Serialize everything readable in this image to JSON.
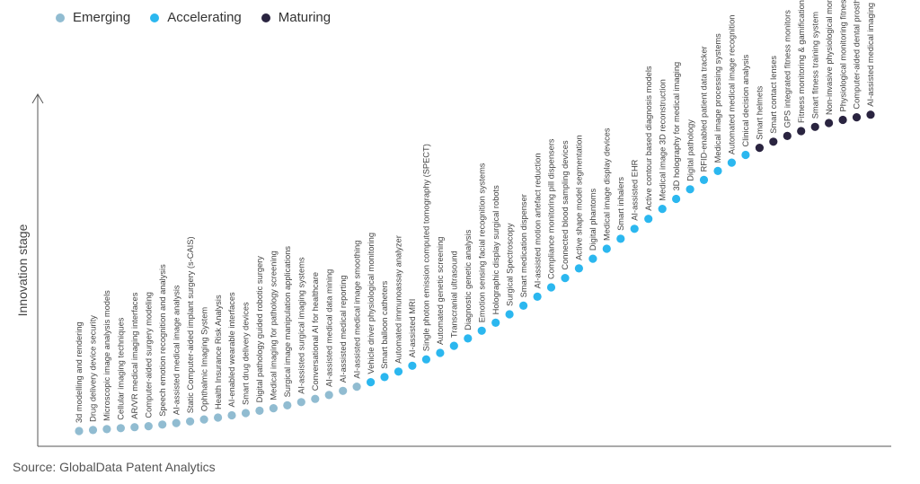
{
  "legend": [
    {
      "label": "Emerging",
      "color": "#91bcd1"
    },
    {
      "label": "Accelerating",
      "color": "#2bb7ef"
    },
    {
      "label": "Maturing",
      "color": "#2a2440"
    }
  ],
  "source": "Source: GlobalData Patent Analytics",
  "chart_data": {
    "type": "scatter",
    "title": "",
    "ylabel": "Innovation stage",
    "xlabel": "",
    "grid": false,
    "legend_position": "top-left",
    "y_range": [
      0,
      100
    ],
    "series": [
      {
        "name": "Emerging",
        "color": "#91bcd1"
      },
      {
        "name": "Accelerating",
        "color": "#2bb7ef"
      },
      {
        "name": "Maturing",
        "color": "#2a2440"
      }
    ],
    "points": [
      {
        "label": "3d modelling and rendering",
        "stage": "Emerging",
        "y": 0.0
      },
      {
        "label": "Drug delivery device security",
        "stage": "Emerging",
        "y": 0.3
      },
      {
        "label": "Microscopic image analysis models",
        "stage": "Emerging",
        "y": 0.6
      },
      {
        "label": "Cellular imaging techniques",
        "stage": "Emerging",
        "y": 0.9
      },
      {
        "label": "AR/VR medical imaging interfaces",
        "stage": "Emerging",
        "y": 1.2
      },
      {
        "label": "Computer-aided surgery modeling",
        "stage": "Emerging",
        "y": 1.5
      },
      {
        "label": "Speech emotion recognition and analysis",
        "stage": "Emerging",
        "y": 2.0
      },
      {
        "label": "AI-assisted medical image analysis",
        "stage": "Emerging",
        "y": 2.5
      },
      {
        "label": "Static Computer-aided implant surgery (s-CAIS)",
        "stage": "Emerging",
        "y": 3.0
      },
      {
        "label": "Ophthalmic Imaging System",
        "stage": "Emerging",
        "y": 3.6
      },
      {
        "label": "Health Insurance Risk Analysis",
        "stage": "Emerging",
        "y": 4.2
      },
      {
        "label": "AI-enabled wearable interfaces",
        "stage": "Emerging",
        "y": 4.9
      },
      {
        "label": "Smart drug delivery devices",
        "stage": "Emerging",
        "y": 5.6
      },
      {
        "label": "Digital pathology guided robotic surgery",
        "stage": "Emerging",
        "y": 6.3
      },
      {
        "label": "Medical imaging for pathology screening",
        "stage": "Emerging",
        "y": 7.1
      },
      {
        "label": "Surgical image manipulation applications",
        "stage": "Emerging",
        "y": 8.0
      },
      {
        "label": "AI-assisted surgical imaging systems",
        "stage": "Emerging",
        "y": 9.0
      },
      {
        "label": "Conversational AI for healthcare",
        "stage": "Emerging",
        "y": 10.0
      },
      {
        "label": "AI-assisted medical data mining",
        "stage": "Emerging",
        "y": 11.2
      },
      {
        "label": "AI-assisted medical reporting",
        "stage": "Emerging",
        "y": 12.5
      },
      {
        "label": "AI-assisted medical image smoothing",
        "stage": "Emerging",
        "y": 13.8
      },
      {
        "label": "Vehicle driver physiological monitoring",
        "stage": "Accelerating",
        "y": 15.2
      },
      {
        "label": "Smart balloon catheters",
        "stage": "Accelerating",
        "y": 16.8
      },
      {
        "label": "Automated immunoassay analyzer",
        "stage": "Accelerating",
        "y": 18.5
      },
      {
        "label": "AI-assisted MRI",
        "stage": "Accelerating",
        "y": 20.3
      },
      {
        "label": "Single photon emission computed tomography (SPECT)",
        "stage": "Accelerating",
        "y": 22.3
      },
      {
        "label": "Automated genetic screening",
        "stage": "Accelerating",
        "y": 24.3
      },
      {
        "label": "Transcranial ultrasound",
        "stage": "Accelerating",
        "y": 26.5
      },
      {
        "label": "Diagnostic genetic analysis",
        "stage": "Accelerating",
        "y": 28.8
      },
      {
        "label": "Emotion sensing facial recognition systems",
        "stage": "Accelerating",
        "y": 31.2
      },
      {
        "label": "Holographic display surgical robots",
        "stage": "Accelerating",
        "y": 33.7
      },
      {
        "label": "Surgical Spectroscopy",
        "stage": "Accelerating",
        "y": 36.3
      },
      {
        "label": "Smart medication dispenser",
        "stage": "Accelerating",
        "y": 39.0
      },
      {
        "label": "AI-assisted motion artefact reduction",
        "stage": "Accelerating",
        "y": 41.8
      },
      {
        "label": "Compliance monitoring pill dispensers",
        "stage": "Accelerating",
        "y": 44.7
      },
      {
        "label": "Connected blood sampling devices",
        "stage": "Accelerating",
        "y": 47.6
      },
      {
        "label": "Active shape model segmentation",
        "stage": "Accelerating",
        "y": 50.6
      },
      {
        "label": "Digital phantoms",
        "stage": "Accelerating",
        "y": 53.6
      },
      {
        "label": "Medical image display devices",
        "stage": "Accelerating",
        "y": 56.7
      },
      {
        "label": "Smart inhalers",
        "stage": "Accelerating",
        "y": 59.8
      },
      {
        "label": "AI-assisted EHR",
        "stage": "Accelerating",
        "y": 62.9
      },
      {
        "label": "Active contour based diagnosis models",
        "stage": "Accelerating",
        "y": 66.0
      },
      {
        "label": "Medical image 3D reconstruction",
        "stage": "Accelerating",
        "y": 69.1
      },
      {
        "label": "3D holography for medical imaging",
        "stage": "Accelerating",
        "y": 72.2
      },
      {
        "label": "Digital pathology",
        "stage": "Accelerating",
        "y": 75.2
      },
      {
        "label": "RFID-enabled patient data tracker",
        "stage": "Accelerating",
        "y": 78.1
      },
      {
        "label": "Medical image processing systems",
        "stage": "Accelerating",
        "y": 80.9
      },
      {
        "label": "Automated medical image recognition",
        "stage": "Accelerating",
        "y": 83.5
      },
      {
        "label": "Clinical decision analysis",
        "stage": "Accelerating",
        "y": 85.9
      },
      {
        "label": "Smart helmets",
        "stage": "Maturing",
        "y": 88.1
      },
      {
        "label": "Smart contact lenses",
        "stage": "Maturing",
        "y": 90.0
      },
      {
        "label": "GPS integrated fitness monitors",
        "stage": "Maturing",
        "y": 91.8
      },
      {
        "label": "Fitness monitoring & gamification",
        "stage": "Maturing",
        "y": 93.3
      },
      {
        "label": "Smart fitness training system",
        "stage": "Maturing",
        "y": 94.6
      },
      {
        "label": "Non-invasive physiological monitoring",
        "stage": "Maturing",
        "y": 95.8
      },
      {
        "label": "Physiological monitoring fitness equipments",
        "stage": "Maturing",
        "y": 96.8
      },
      {
        "label": "Computer-aided dental prostheses",
        "stage": "Maturing",
        "y": 97.6
      },
      {
        "label": "AI-assisted medical imaging",
        "stage": "Maturing",
        "y": 98.4
      }
    ]
  }
}
